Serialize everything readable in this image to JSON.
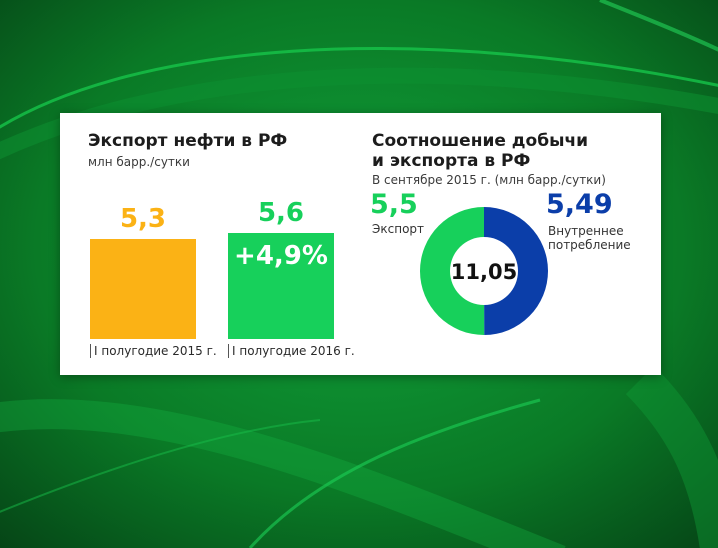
{
  "colors": {
    "orange": "#fbb215",
    "green": "#17d05b",
    "blue": "#0b3ea9",
    "background_green": "#0c7a2a"
  },
  "left_panel": {
    "title": "Экспорт нефти в РФ",
    "subtitle": "млн барр./сутки"
  },
  "right_panel": {
    "title_line1": "Соотношение добычи",
    "title_line2": "и экспорта в РФ",
    "subtitle": "В сентябре 2015 г. (млн барр./сутки)",
    "export_value": "5,5",
    "export_label": "Экспорт",
    "domestic_value": "5,49",
    "domestic_label_line1": "Внутреннее",
    "domestic_label_line2": "потребление",
    "total": "11,05"
  },
  "chart_data": [
    {
      "type": "bar",
      "title": "Экспорт нефти в РФ",
      "ylabel": "млн барр./сутки",
      "categories": [
        "I полугодие 2015 г.",
        "I полугодие 2016 г."
      ],
      "values": [
        5.3,
        5.6
      ],
      "value_labels": [
        "5,3",
        "5,6"
      ],
      "annotation": "+4,9%",
      "colors": [
        "#fbb215",
        "#17d05b"
      ]
    },
    {
      "type": "pie",
      "title": "Соотношение добычи и экспорта в РФ",
      "subtitle": "В сентябре 2015 г. (млн барр./сутки)",
      "labels": [
        "Экспорт",
        "Внутреннее потребление"
      ],
      "values": [
        5.5,
        5.49
      ],
      "center_label": "11,05",
      "colors": [
        "#17d05b",
        "#0b3ea9"
      ]
    }
  ]
}
